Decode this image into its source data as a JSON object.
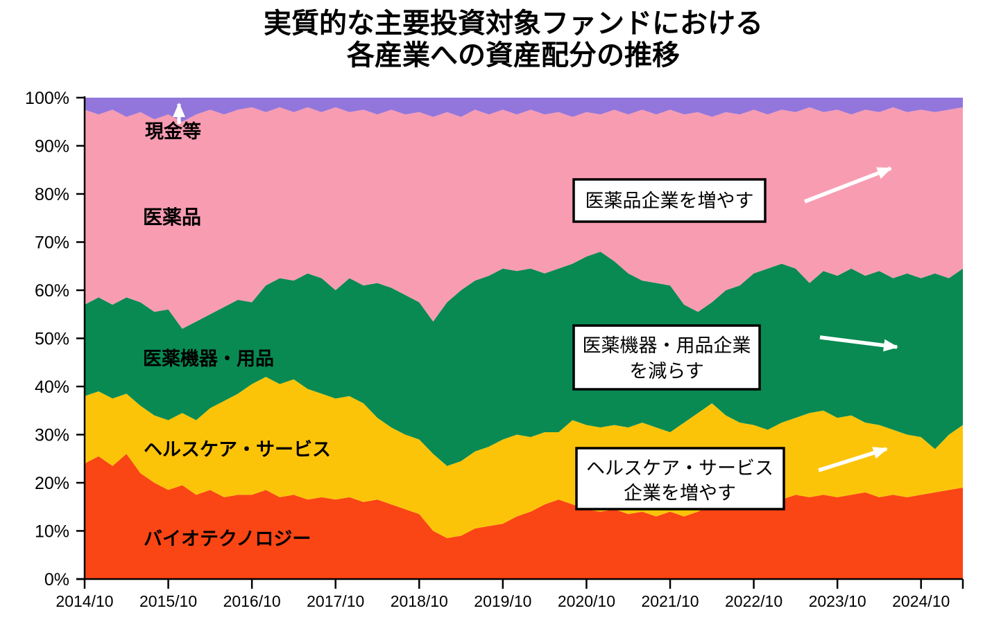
{
  "title": {
    "line1": "実質的な主要投資対象ファンドにおける",
    "line2": "各産業への資産配分の推移"
  },
  "area_labels": {
    "cash": "現金等",
    "pharma": "医薬品",
    "devices": "医薬機器・用品",
    "healthcare": "ヘルスケア・サービス",
    "biotech": "バイオテクノロジー"
  },
  "annotations": {
    "pharma_box": "医薬品企業を増やす",
    "devices_box_line1": "医薬機器・用品企業",
    "devices_box_line2": "を減らす",
    "healthcare_box_line1": "ヘルスケア・サービス",
    "healthcare_box_line2": "企業を増やす"
  },
  "colors": {
    "biotech": "#FA4514",
    "healthcare": "#FCC409",
    "devices": "#098A52",
    "pharma": "#F89CB2",
    "cash": "#9376DB",
    "axis": "#000000",
    "arrow": "#ffffff"
  },
  "chart_data": {
    "type": "area",
    "stacked": true,
    "unit": "percent",
    "grid": false,
    "legend_position": "inside-area-labels",
    "title": "実質的な主要投資対象ファンドにおける各産業への資産配分の推移",
    "ylim": [
      0,
      100
    ],
    "y_ticks": [
      "0%",
      "10%",
      "20%",
      "30%",
      "40%",
      "50%",
      "60%",
      "70%",
      "80%",
      "90%",
      "100%"
    ],
    "x_tick_labels": [
      "2014/10",
      "2015/10",
      "2016/10",
      "2017/10",
      "2018/10",
      "2019/10",
      "2020/10",
      "2021/10",
      "2022/10",
      "2023/10",
      "2024/10"
    ],
    "x": [
      "2014/10",
      "2014/12",
      "2015/02",
      "2015/04",
      "2015/06",
      "2015/08",
      "2015/10",
      "2015/12",
      "2016/02",
      "2016/04",
      "2016/06",
      "2016/08",
      "2016/10",
      "2016/12",
      "2017/02",
      "2017/04",
      "2017/06",
      "2017/08",
      "2017/10",
      "2017/12",
      "2018/02",
      "2018/04",
      "2018/06",
      "2018/08",
      "2018/10",
      "2018/12",
      "2019/02",
      "2019/04",
      "2019/06",
      "2019/08",
      "2019/10",
      "2019/12",
      "2020/02",
      "2020/04",
      "2020/06",
      "2020/08",
      "2020/10",
      "2020/12",
      "2021/02",
      "2021/04",
      "2021/06",
      "2021/08",
      "2021/10",
      "2021/12",
      "2022/02",
      "2022/04",
      "2022/06",
      "2022/08",
      "2022/10",
      "2022/12",
      "2023/02",
      "2023/04",
      "2023/06",
      "2023/08",
      "2023/10",
      "2023/12",
      "2024/02",
      "2024/04",
      "2024/06",
      "2024/08",
      "2024/10",
      "2024/12",
      "2025/02",
      "2025/04"
    ],
    "series": [
      {
        "key": "biotech",
        "name": "バイオテクノロジー",
        "color": "#FA4514",
        "values": [
          24,
          25.5,
          23.5,
          26,
          22,
          20,
          18.5,
          19.5,
          17.5,
          18.5,
          17,
          17.5,
          17.5,
          18.5,
          17,
          17.5,
          16.5,
          17,
          16.5,
          17,
          16,
          16.5,
          15.5,
          14.5,
          13.5,
          10,
          8.5,
          9,
          10.5,
          11,
          11.5,
          13,
          14,
          15.5,
          16.5,
          15.5,
          14.5,
          14,
          14.5,
          13.5,
          14,
          13,
          14,
          13,
          14,
          15.5,
          16,
          16.5,
          17,
          17.5,
          16.5,
          17.5,
          17,
          17.5,
          17,
          17.5,
          18,
          17,
          17.5,
          17,
          17.5,
          18,
          18.5,
          19
        ]
      },
      {
        "key": "healthcare",
        "name": "ヘルスケア・サービス",
        "color": "#FCC409",
        "values": [
          14,
          13.5,
          14,
          12.5,
          14,
          14,
          14.5,
          15,
          15.5,
          17,
          20,
          21,
          23,
          23.5,
          23.5,
          24,
          23,
          21.5,
          21,
          21,
          20.5,
          17,
          16,
          15.5,
          15.5,
          16,
          15,
          15.5,
          16,
          16.5,
          17.5,
          17,
          15.5,
          15,
          14,
          17.5,
          17.5,
          17.5,
          17.5,
          18,
          18.5,
          18.5,
          16.5,
          19.5,
          20.5,
          21,
          18,
          16,
          15,
          13.5,
          16,
          16,
          17.5,
          17.5,
          16.5,
          16.5,
          14.5,
          15,
          13.5,
          13,
          12,
          9,
          11.5,
          13
        ]
      },
      {
        "key": "devices",
        "name": "医薬機器・用品",
        "color": "#098A52",
        "values": [
          19,
          19.5,
          19.5,
          20,
          21.5,
          21.5,
          23,
          17.5,
          20.5,
          19.5,
          19.5,
          19.5,
          17,
          19,
          22,
          20.5,
          24,
          24,
          22.5,
          24.5,
          24.5,
          28,
          29,
          29,
          28.5,
          27.5,
          34,
          35.5,
          35.5,
          35.5,
          35.5,
          34,
          35,
          33,
          34,
          32.5,
          35,
          36.5,
          34,
          32,
          29.5,
          30,
          30.5,
          24.5,
          21,
          21,
          26,
          28.5,
          31.5,
          33.5,
          33,
          31,
          27,
          29,
          29.5,
          30.5,
          30.5,
          32,
          31.5,
          33.5,
          33,
          36.5,
          32.5,
          32.5
        ]
      },
      {
        "key": "pharma",
        "name": "医薬品",
        "color": "#F89CB2",
        "values": [
          40.5,
          38,
          40.5,
          37.5,
          39.5,
          40,
          40.5,
          43,
          43,
          42.5,
          40,
          39.5,
          40.5,
          36,
          35.5,
          35,
          34.5,
          34.5,
          38,
          34.5,
          36.5,
          35,
          37,
          37.5,
          39.5,
          42.5,
          39.5,
          36,
          35.5,
          33.5,
          33,
          32.5,
          33,
          33,
          32.5,
          30.5,
          30,
          28.5,
          31.5,
          33,
          35.5,
          35,
          36.5,
          39.5,
          41.5,
          38.5,
          37,
          35.5,
          34,
          32,
          32,
          32.5,
          36.5,
          33,
          34.5,
          32,
          34.5,
          33,
          35.5,
          33.5,
          35,
          33.5,
          35,
          33.5
        ]
      },
      {
        "key": "cash",
        "name": "現金等",
        "color": "#9376DB",
        "values": [
          2.5,
          3.5,
          2.5,
          4,
          3,
          4.5,
          3.5,
          5,
          3.5,
          2.5,
          3.5,
          2.5,
          2,
          3,
          2,
          3,
          2,
          3,
          2,
          3,
          2.5,
          3.5,
          2.5,
          3.5,
          3,
          4,
          3,
          4,
          2.5,
          3.5,
          2.5,
          3.5,
          2.5,
          3.5,
          3,
          4,
          3,
          3.5,
          2.5,
          3.5,
          2.5,
          3.5,
          2.5,
          3.5,
          3,
          4,
          3,
          3.5,
          2.5,
          3.5,
          2.5,
          3,
          2,
          3,
          2.5,
          3.5,
          2.5,
          3,
          2,
          3,
          2.5,
          3,
          2.5,
          2
        ]
      }
    ]
  }
}
